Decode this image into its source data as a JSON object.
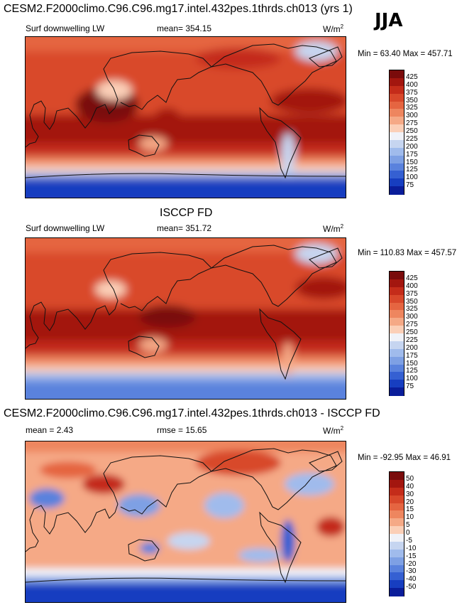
{
  "season": "JJA",
  "panels": [
    {
      "title": "CESM2.F2000climo.C96.C96.mg17.intel.432pes.1thrds.ch013 (yrs 1)",
      "variable": "Surf downwelling LW",
      "mean_text": "mean= 354.15",
      "units_base": "W/m",
      "units_exp": "2",
      "minmax": "Min =  63.40 Max = 457.71",
      "colorbar": {
        "labels": [
          "425",
          "400",
          "375",
          "350",
          "325",
          "300",
          "275",
          "250",
          "225",
          "200",
          "175",
          "150",
          "125",
          "100",
          "75"
        ],
        "colors": [
          "#7a0b0b",
          "#a3160f",
          "#c42c1a",
          "#d8482b",
          "#e56541",
          "#ee865f",
          "#f5a986",
          "#fbcfb7",
          "#f0f2f8",
          "#c6d5f0",
          "#a0bbec",
          "#7ea0e4",
          "#5a82dd",
          "#3560d2",
          "#173ec0",
          "#0a1d9a"
        ]
      }
    },
    {
      "title": "ISCCP FD",
      "variable": "Surf downwelling LW",
      "mean_text": "mean= 351.72",
      "units_base": "W/m",
      "units_exp": "2",
      "minmax": "Min = 110.83 Max = 457.57",
      "colorbar": {
        "labels": [
          "425",
          "400",
          "375",
          "350",
          "325",
          "300",
          "275",
          "250",
          "225",
          "200",
          "175",
          "150",
          "125",
          "100",
          "75"
        ],
        "colors": [
          "#7a0b0b",
          "#a3160f",
          "#c42c1a",
          "#d8482b",
          "#e56541",
          "#ee865f",
          "#f5a986",
          "#fbcfb7",
          "#f0f2f8",
          "#c6d5f0",
          "#a0bbec",
          "#7ea0e4",
          "#5a82dd",
          "#3560d2",
          "#173ec0",
          "#0a1d9a"
        ]
      }
    },
    {
      "title": "CESM2.F2000climo.C96.C96.mg17.intel.432pes.1thrds.ch013 - ISCCP FD",
      "mean_text": "mean =   2.43",
      "rmse_text": "rmse =  15.65",
      "units_base": "W/m",
      "units_exp": "2",
      "minmax": "Min = -92.95 Max =  46.91",
      "colorbar": {
        "labels": [
          "50",
          "40",
          "30",
          "20",
          "15",
          "10",
          "5",
          "0",
          "-5",
          "-10",
          "-15",
          "-20",
          "-30",
          "-40",
          "-50"
        ],
        "colors": [
          "#7a0b0b",
          "#a3160f",
          "#c42c1a",
          "#d8482b",
          "#e56541",
          "#ee865f",
          "#f5a986",
          "#fbcfb7",
          "#f0f2f8",
          "#c6d5f0",
          "#a0bbec",
          "#7ea0e4",
          "#5a82dd",
          "#3560d2",
          "#173ec0",
          "#0a1d9a"
        ]
      }
    }
  ]
}
